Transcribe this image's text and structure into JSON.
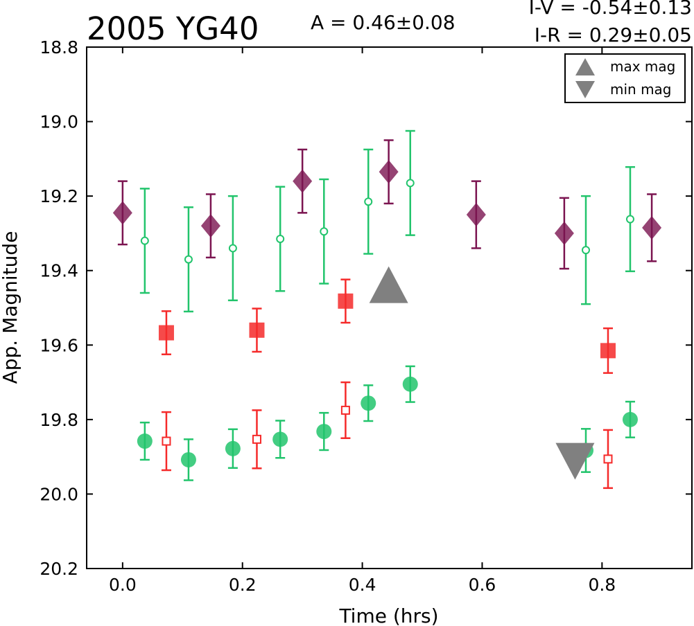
{
  "chart_data": {
    "type": "scatter",
    "title": "2005 YG40",
    "amplitude_text": "A  = 0.46±0.08",
    "color_index_1": "I-V = -0.54±0.13",
    "color_index_2": "I-R  = 0.29±0.05",
    "xlabel": "Time (hrs)",
    "ylabel": "App. Magnitude",
    "xlim": [
      -0.06,
      0.95
    ],
    "ylim": [
      20.2,
      18.8
    ],
    "y_inverted": true,
    "grid": false,
    "legend_position": "top-right",
    "xticks": [
      0.0,
      0.2,
      0.4,
      0.6,
      0.8
    ],
    "xtick_labels": [
      "0.0",
      "0.2",
      "0.4",
      "0.6",
      "0.8"
    ],
    "yticks": [
      18.8,
      19.0,
      19.2,
      19.4,
      19.6,
      19.8,
      20.0,
      20.2
    ],
    "ytick_labels": [
      "18.8",
      "19.0",
      "19.2",
      "19.4",
      "19.6",
      "19.8",
      "20.0",
      "20.2"
    ],
    "legend": [
      {
        "label": "max mag",
        "marker": "triangle-up",
        "color": "#808080"
      },
      {
        "label": "min mag",
        "marker": "triangle-down",
        "color": "#808080"
      }
    ],
    "series": [
      {
        "marker": "diamond",
        "filled": true,
        "color": "#7b1450",
        "x": [
          0.0,
          0.147,
          0.3,
          0.444,
          0.59,
          0.737,
          0.883
        ],
        "y": [
          19.245,
          19.28,
          19.16,
          19.135,
          19.25,
          19.3,
          19.285
        ],
        "err": [
          0.085,
          0.085,
          0.085,
          0.085,
          0.09,
          0.095,
          0.09
        ]
      },
      {
        "marker": "circle",
        "filled": false,
        "color": "#22c46c",
        "x": [
          0.037,
          0.11,
          0.184,
          0.263,
          0.336,
          0.41,
          0.48,
          0.773,
          0.847
        ],
        "y": [
          19.32,
          19.37,
          19.34,
          19.315,
          19.295,
          19.215,
          19.165,
          19.345,
          19.262
        ],
        "err": [
          0.14,
          0.14,
          0.14,
          0.14,
          0.14,
          0.14,
          0.14,
          0.145,
          0.14
        ]
      },
      {
        "marker": "square",
        "filled": true,
        "color": "#f52a2a",
        "x": [
          0.073,
          0.224,
          0.372,
          0.81
        ],
        "y": [
          19.567,
          19.56,
          19.482,
          19.615
        ],
        "err": [
          0.058,
          0.058,
          0.058,
          0.06
        ]
      },
      {
        "marker": "circle",
        "filled": true,
        "color": "#22c46c",
        "x": [
          0.037,
          0.11,
          0.184,
          0.263,
          0.336,
          0.41,
          0.48,
          0.773,
          0.847
        ],
        "y": [
          19.858,
          19.908,
          19.878,
          19.853,
          19.832,
          19.756,
          19.705,
          19.883,
          19.8
        ],
        "err": [
          0.05,
          0.055,
          0.052,
          0.05,
          0.05,
          0.048,
          0.048,
          0.058,
          0.048
        ]
      },
      {
        "marker": "square",
        "filled": false,
        "color": "#f52a2a",
        "x": [
          0.073,
          0.224,
          0.372,
          0.81
        ],
        "y": [
          19.858,
          19.853,
          19.775,
          19.906
        ],
        "err": [
          0.078,
          0.078,
          0.075,
          0.078
        ]
      },
      {
        "marker": "triangle-up",
        "filled": true,
        "color": "#808080",
        "x": [
          0.444
        ],
        "y": [
          19.45
        ],
        "err": [
          0
        ]
      },
      {
        "marker": "triangle-down",
        "filled": true,
        "color": "#808080",
        "x": [
          0.755
        ],
        "y": [
          19.9
        ],
        "err": [
          0
        ]
      }
    ]
  }
}
